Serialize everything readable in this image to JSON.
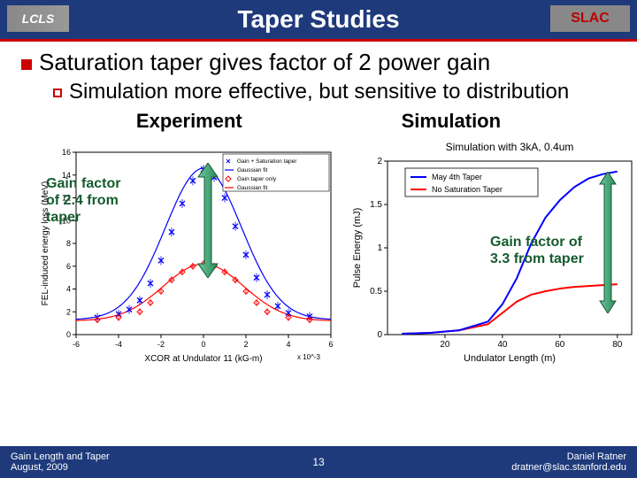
{
  "title": "Taper Studies",
  "logo_left": "LCLS",
  "logo_right": "SLAC",
  "bullet1": "Saturation taper gives factor of 2 power gain",
  "bullet2": "Simulation more effective, but sensitive to distribution",
  "label_exp": "Experiment",
  "label_sim": "Simulation",
  "annot_left_l1": "Gain factor",
  "annot_left_l2": "of 2.4 from",
  "annot_left_l3": "taper",
  "annot_right_l1": "Gain factor of",
  "annot_right_l2": "3.3 from taper",
  "footer_left_l1": "Gain Length and Taper",
  "footer_left_l2": "August, 2009",
  "footer_page": "13",
  "footer_right_l1": "Daniel Ratner",
  "footer_right_l2": "dratner@slac.stanford.edu",
  "chart_exp": {
    "type": "scatter+line",
    "xlabel": "XCOR at Undulator 11 (kG-m)",
    "ylabel": "FEL-induced energy loss (MeV)",
    "xlim": [
      -6,
      6
    ],
    "ylim": [
      0,
      16
    ],
    "xticks": [
      -6,
      -4,
      -2,
      0,
      2,
      4,
      6
    ],
    "yticks": [
      0,
      2,
      4,
      6,
      8,
      10,
      12,
      14,
      16
    ],
    "x_scale_note": "x 10^-3",
    "bg": "#ffffff",
    "axis_color": "#000000",
    "grid": false,
    "title_in": "",
    "legend": [
      {
        "label": "Gain + Saturation taper",
        "marker": "x",
        "color": "#0000ff"
      },
      {
        "label": "Gaussian fit",
        "marker": "line",
        "color": "#0000ff"
      },
      {
        "label": "Gain taper only",
        "marker": "diamond",
        "color": "#ff0000"
      },
      {
        "label": "Gaussian fit",
        "marker": "line",
        "color": "#ff0000"
      }
    ],
    "series_blue_x": {
      "x": [
        -5,
        -4,
        -3.5,
        -3,
        -2.5,
        -2,
        -1.5,
        -1,
        -0.5,
        0,
        0.5,
        1,
        1.5,
        2,
        2.5,
        3,
        3.5,
        4,
        5
      ],
      "y": [
        1.5,
        1.8,
        2.2,
        3.0,
        4.5,
        6.5,
        9.0,
        11.5,
        13.5,
        14.5,
        13.8,
        12.0,
        9.5,
        7.0,
        5.0,
        3.5,
        2.5,
        1.9,
        1.6
      ],
      "color": "#0000ff",
      "marker": "x",
      "size": 5
    },
    "series_blue_fit": {
      "color": "#0000ff",
      "width": 1.2,
      "peak": 14.6,
      "center": 0,
      "sigma": 1.8,
      "baseline": 1.3
    },
    "series_red_d": {
      "x": [
        -5,
        -4,
        -3,
        -2.5,
        -2,
        -1.5,
        -1,
        -0.5,
        0,
        0.5,
        1,
        1.5,
        2,
        2.5,
        3,
        4,
        5
      ],
      "y": [
        1.3,
        1.5,
        2.0,
        2.8,
        3.8,
        4.8,
        5.5,
        6.0,
        6.2,
        6.0,
        5.5,
        4.8,
        3.8,
        2.8,
        2.0,
        1.5,
        1.3
      ],
      "color": "#ff0000",
      "marker": "diamond",
      "size": 5
    },
    "series_red_fit": {
      "color": "#ff0000",
      "width": 1.2,
      "peak": 6.2,
      "center": 0,
      "sigma": 1.9,
      "baseline": 1.2
    }
  },
  "chart_sim": {
    "type": "line",
    "title_in": "Simulation with 3kA, 0.4um",
    "xlabel": "Undulator Length (m)",
    "ylabel": "Pulse Energy (mJ)",
    "xlim": [
      0,
      85
    ],
    "ylim": [
      0,
      2.0
    ],
    "xticks": [
      20,
      40,
      60,
      80
    ],
    "yticks": [
      0,
      0.5,
      1,
      1.5,
      2
    ],
    "bg": "#ffffff",
    "axis_color": "#000000",
    "legend": [
      {
        "label": "May 4th Taper",
        "color": "#0000ff",
        "width": 2
      },
      {
        "label": "No Saturation Taper",
        "color": "#ff0000",
        "width": 2
      }
    ],
    "series_blue": {
      "x": [
        5,
        15,
        25,
        35,
        40,
        45,
        50,
        55,
        60,
        65,
        70,
        75,
        80
      ],
      "y": [
        0.01,
        0.02,
        0.05,
        0.15,
        0.35,
        0.65,
        1.05,
        1.35,
        1.55,
        1.7,
        1.8,
        1.85,
        1.88
      ],
      "color": "#0000ff",
      "width": 2
    },
    "series_red": {
      "x": [
        5,
        15,
        25,
        35,
        40,
        45,
        50,
        55,
        60,
        65,
        70,
        75,
        80
      ],
      "y": [
        0.01,
        0.02,
        0.05,
        0.12,
        0.25,
        0.38,
        0.46,
        0.5,
        0.53,
        0.55,
        0.56,
        0.57,
        0.58
      ],
      "color": "#ff0000",
      "width": 2
    }
  },
  "arrow_color": "#2a8a5c",
  "arrow_fill": "#6fc49b"
}
